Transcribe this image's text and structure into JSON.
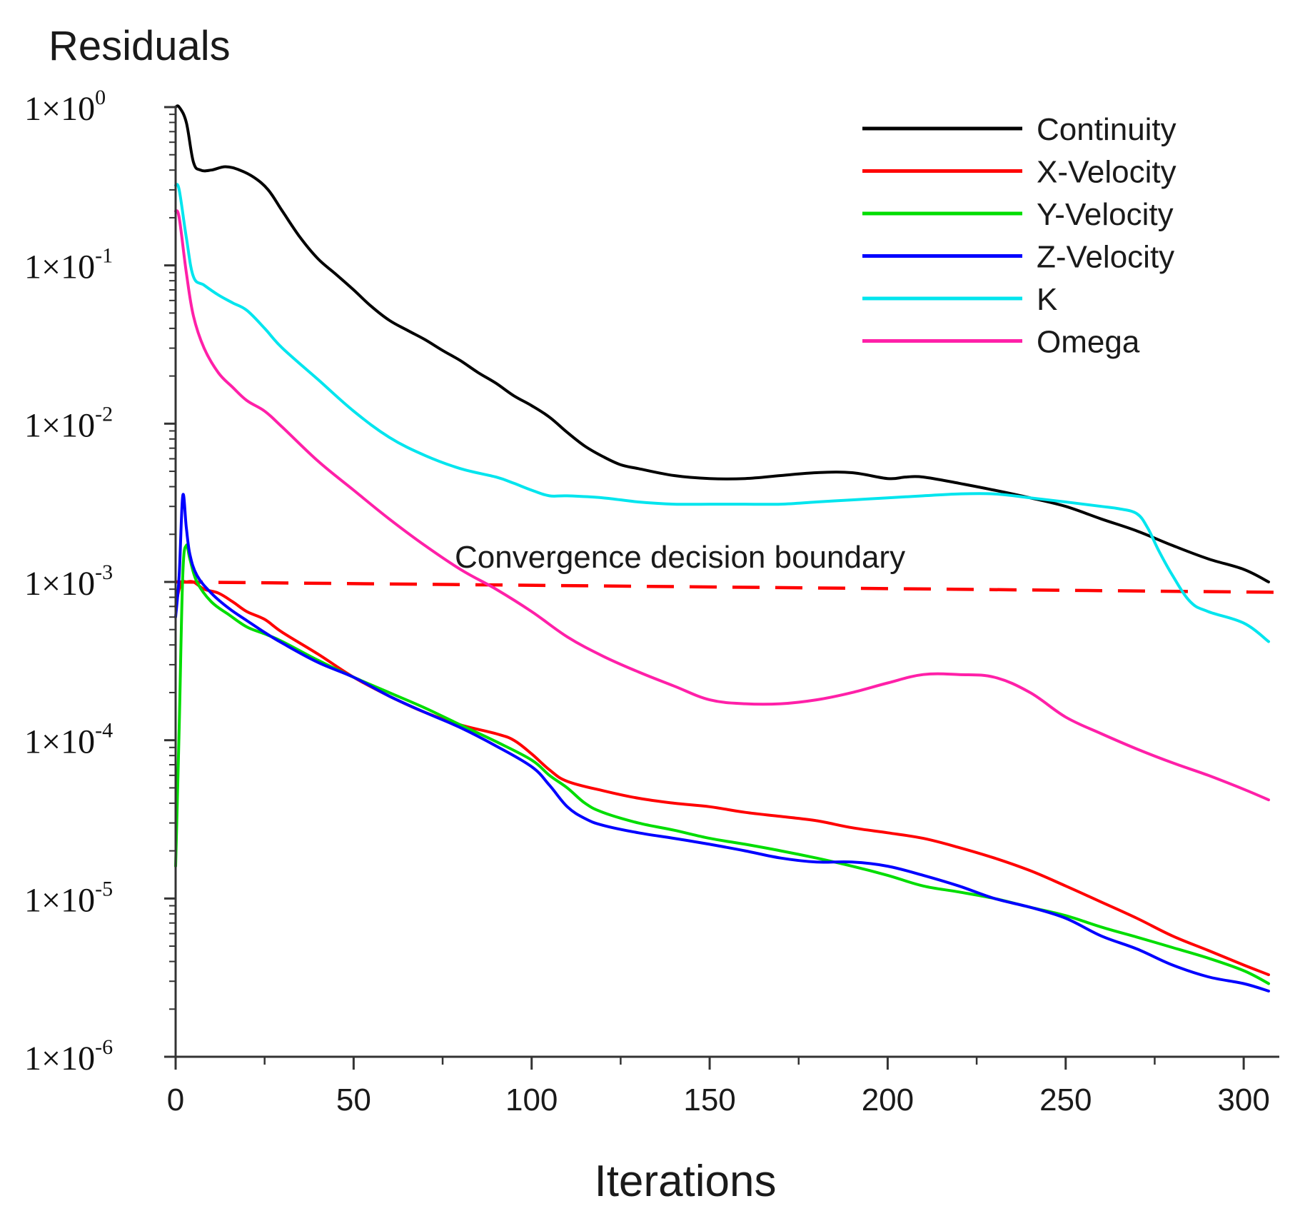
{
  "chart_data": {
    "type": "line",
    "title": "",
    "ylabel": "Residuals",
    "xlabel": "Iterations",
    "yscale": "log",
    "ylim": [
      1e-06,
      1
    ],
    "xlim": [
      0,
      310
    ],
    "x_ticks": [
      0,
      50,
      100,
      150,
      200,
      250,
      300
    ],
    "x_tick_labels": [
      "0",
      "50",
      "100",
      "150",
      "200",
      "250",
      "300"
    ],
    "y_ticks": [
      {
        "value": 1,
        "mantissa": "1×10",
        "exponent": "0"
      },
      {
        "value": 0.1,
        "mantissa": "1×10",
        "exponent": "-1"
      },
      {
        "value": 0.01,
        "mantissa": "1×10",
        "exponent": "-2"
      },
      {
        "value": 0.001,
        "mantissa": "1×10",
        "exponent": "-3"
      },
      {
        "value": 0.0001,
        "mantissa": "1×10",
        "exponent": "-4"
      },
      {
        "value": 1e-05,
        "mantissa": "1×10",
        "exponent": "-5"
      },
      {
        "value": 1e-06,
        "mantissa": "1×10",
        "exponent": "-6"
      }
    ],
    "grid": false,
    "legend_position": "top-right",
    "series": [
      {
        "name": "Continuity",
        "color": "#000000",
        "x": [
          0,
          1,
          3,
          5,
          7,
          10,
          14,
          18,
          22,
          26,
          30,
          35,
          40,
          45,
          50,
          55,
          60,
          65,
          70,
          75,
          80,
          85,
          90,
          95,
          100,
          105,
          110,
          115,
          120,
          125,
          130,
          140,
          150,
          160,
          170,
          180,
          190,
          200,
          205,
          210,
          220,
          230,
          240,
          250,
          260,
          270,
          280,
          290,
          300,
          307
        ],
        "y": [
          1.0,
          1.0,
          0.8,
          0.45,
          0.4,
          0.4,
          0.42,
          0.4,
          0.36,
          0.3,
          0.22,
          0.15,
          0.11,
          0.088,
          0.07,
          0.055,
          0.045,
          0.039,
          0.034,
          0.029,
          0.025,
          0.021,
          0.018,
          0.015,
          0.013,
          0.011,
          0.0088,
          0.0072,
          0.0062,
          0.0055,
          0.0052,
          0.0047,
          0.0045,
          0.0045,
          0.0047,
          0.0049,
          0.0049,
          0.0045,
          0.0046,
          0.0046,
          0.0042,
          0.0038,
          0.0034,
          0.003,
          0.0025,
          0.0021,
          0.0017,
          0.0014,
          0.0012,
          0.001
        ]
      },
      {
        "name": "X-Velocity",
        "color": "#ff0000",
        "x": [
          0,
          1,
          2,
          3,
          5,
          8,
          12,
          16,
          20,
          25,
          30,
          40,
          50,
          60,
          70,
          80,
          90,
          95,
          100,
          105,
          110,
          120,
          130,
          140,
          150,
          160,
          170,
          180,
          190,
          200,
          210,
          220,
          230,
          240,
          250,
          260,
          270,
          280,
          290,
          300,
          307
        ],
        "y": [
          0.0007,
          0.0009,
          0.001,
          0.001,
          0.001,
          0.0009,
          0.00085,
          0.00075,
          0.00065,
          0.00058,
          0.00048,
          0.00035,
          0.00025,
          0.00019,
          0.00015,
          0.000125,
          0.00011,
          0.0001,
          8.2e-05,
          6.5e-05,
          5.5e-05,
          4.8e-05,
          4.3e-05,
          4e-05,
          3.8e-05,
          3.5e-05,
          3.3e-05,
          3.1e-05,
          2.8e-05,
          2.6e-05,
          2.4e-05,
          2.1e-05,
          1.8e-05,
          1.5e-05,
          1.2e-05,
          9.5e-06,
          7.5e-06,
          5.8e-06,
          4.7e-06,
          3.8e-06,
          3.3e-06
        ]
      },
      {
        "name": "Y-Velocity",
        "color": "#00dd00",
        "x": [
          0,
          1,
          2,
          3,
          4,
          6,
          10,
          15,
          20,
          25,
          30,
          40,
          50,
          60,
          70,
          80,
          90,
          100,
          105,
          110,
          115,
          120,
          130,
          140,
          150,
          160,
          170,
          180,
          190,
          200,
          210,
          220,
          230,
          240,
          250,
          260,
          270,
          280,
          290,
          300,
          307
        ],
        "y": [
          1.6e-05,
          0.00012,
          0.0011,
          0.0017,
          0.0014,
          0.001,
          0.00075,
          0.00062,
          0.00052,
          0.00047,
          0.00042,
          0.00032,
          0.00025,
          0.0002,
          0.00016,
          0.000125,
          9.8e-05,
          7.5e-05,
          6e-05,
          5e-05,
          4e-05,
          3.5e-05,
          3e-05,
          2.7e-05,
          2.4e-05,
          2.2e-05,
          2e-05,
          1.8e-05,
          1.6e-05,
          1.4e-05,
          1.2e-05,
          1.1e-05,
          1e-05,
          8.8e-06,
          7.8e-06,
          6.6e-06,
          5.7e-06,
          4.9e-06,
          4.2e-06,
          3.5e-06,
          2.9e-06
        ]
      },
      {
        "name": "Z-Velocity",
        "color": "#0000ff",
        "x": [
          0,
          1,
          2,
          3,
          4,
          6,
          10,
          15,
          20,
          25,
          30,
          40,
          50,
          60,
          70,
          80,
          90,
          100,
          105,
          110,
          115,
          120,
          130,
          140,
          150,
          160,
          170,
          180,
          190,
          200,
          210,
          220,
          230,
          240,
          250,
          260,
          270,
          280,
          290,
          300,
          307
        ],
        "y": [
          0.0006,
          0.0011,
          0.0035,
          0.0022,
          0.0015,
          0.0011,
          0.00085,
          0.00068,
          0.00057,
          0.00048,
          0.00041,
          0.00031,
          0.00025,
          0.00019,
          0.00015,
          0.00012,
          9.2e-05,
          6.8e-05,
          5.2e-05,
          3.8e-05,
          3.2e-05,
          2.9e-05,
          2.6e-05,
          2.4e-05,
          2.2e-05,
          2e-05,
          1.8e-05,
          1.7e-05,
          1.7e-05,
          1.6e-05,
          1.4e-05,
          1.2e-05,
          1e-05,
          8.8e-06,
          7.5e-06,
          5.8e-06,
          4.8e-06,
          3.8e-06,
          3.2e-06,
          2.9e-06,
          2.6e-06
        ]
      },
      {
        "name": "K",
        "color": "#00e5ee",
        "x": [
          0,
          1,
          3,
          5,
          8,
          12,
          16,
          20,
          25,
          30,
          40,
          50,
          60,
          70,
          80,
          90,
          95,
          100,
          105,
          110,
          120,
          130,
          140,
          150,
          160,
          170,
          180,
          190,
          200,
          210,
          220,
          230,
          240,
          250,
          260,
          265,
          270,
          273,
          276,
          280,
          285,
          290,
          300,
          307
        ],
        "y": [
          0.32,
          0.3,
          0.15,
          0.085,
          0.075,
          0.065,
          0.058,
          0.052,
          0.04,
          0.03,
          0.019,
          0.012,
          0.0082,
          0.0063,
          0.0052,
          0.0046,
          0.0042,
          0.0038,
          0.0035,
          0.0035,
          0.0034,
          0.0032,
          0.0031,
          0.0031,
          0.0031,
          0.0031,
          0.0032,
          0.0033,
          0.0034,
          0.0035,
          0.0036,
          0.0036,
          0.0034,
          0.0032,
          0.003,
          0.0029,
          0.0027,
          0.0022,
          0.0016,
          0.0011,
          0.00075,
          0.00065,
          0.00055,
          0.00042
        ]
      },
      {
        "name": "Omega",
        "color": "#ff20a8",
        "x": [
          0,
          1,
          3,
          5,
          8,
          12,
          16,
          20,
          25,
          30,
          40,
          50,
          60,
          70,
          80,
          90,
          100,
          110,
          120,
          130,
          140,
          150,
          160,
          170,
          180,
          190,
          200,
          210,
          220,
          230,
          240,
          250,
          260,
          270,
          280,
          290,
          300,
          307
        ],
        "y": [
          0.22,
          0.2,
          0.09,
          0.048,
          0.03,
          0.021,
          0.017,
          0.014,
          0.012,
          0.0095,
          0.0058,
          0.0038,
          0.0025,
          0.0017,
          0.0012,
          0.0009,
          0.00065,
          0.00045,
          0.00034,
          0.00027,
          0.00022,
          0.00018,
          0.00017,
          0.00017,
          0.00018,
          0.0002,
          0.00023,
          0.00026,
          0.00026,
          0.00025,
          0.0002,
          0.00014,
          0.00011,
          8.8e-05,
          7.2e-05,
          6e-05,
          4.9e-05,
          4.2e-05
        ]
      }
    ],
    "reference_lines": [
      {
        "name": "Convergence decision boundary",
        "label": "Convergence decision boundary",
        "color": "#ff0000",
        "style": "dashed",
        "x": [
          0,
          310
        ],
        "y": [
          0.001,
          0.00086
        ]
      }
    ]
  }
}
